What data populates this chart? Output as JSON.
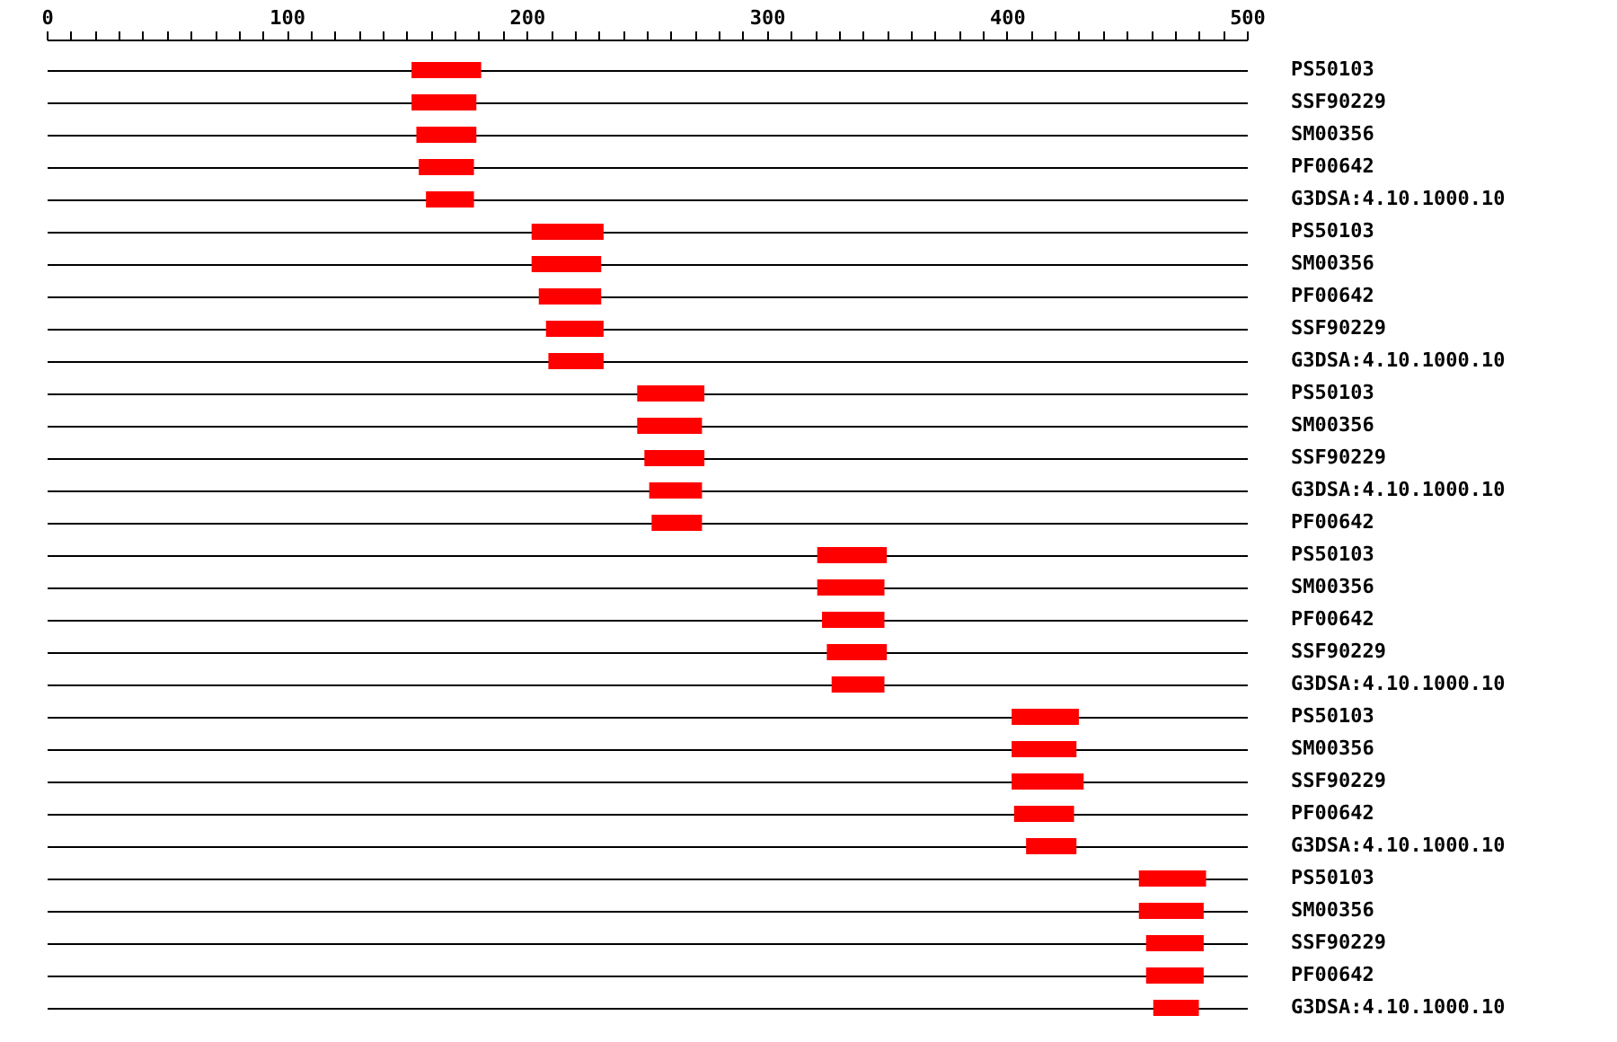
{
  "chart_data": {
    "type": "bar",
    "orientation": "horizontal",
    "color": "#ff0000",
    "grid": "y",
    "categories": [
      "PS50103",
      "SSF90229",
      "SM00356",
      "PF00642",
      "G3DSA:4.10.1000.10",
      "PS50103",
      "SM00356",
      "PF00642",
      "SSF90229",
      "G3DSA:4.10.1000.10",
      "PS50103",
      "SM00356",
      "SSF90229",
      "G3DSA:4.10.1000.10",
      "PF00642",
      "PS50103",
      "SM00356",
      "PF00642",
      "SSF90229",
      "G3DSA:4.10.1000.10",
      "PS50103",
      "SM00356",
      "SSF90229",
      "PF00642",
      "G3DSA:4.10.1000.10",
      "PS50103",
      "SM00356",
      "SSF90229",
      "PF00642",
      "G3DSA:4.10.1000.10"
    ],
    "base": [
      152,
      152,
      154,
      155,
      158,
      202,
      202,
      205,
      208,
      209,
      246,
      246,
      249,
      251,
      252,
      321,
      321,
      323,
      325,
      327,
      402,
      402,
      402,
      403,
      408,
      455,
      455,
      458,
      458,
      461
    ],
    "values": [
      29,
      27,
      25,
      23,
      20,
      30,
      29,
      26,
      24,
      23,
      28,
      27,
      25,
      22,
      21,
      29,
      28,
      26,
      25,
      22,
      28,
      27,
      30,
      25,
      21,
      28,
      27,
      24,
      24,
      19
    ],
    "xlim": [
      0,
      500
    ],
    "xticks": [
      0,
      {
        "value": 10,
        "label": null
      },
      {
        "value": 20,
        "label": null
      },
      {
        "value": 30,
        "label": null
      },
      {
        "value": 40,
        "label": null
      },
      {
        "value": 50,
        "label": null
      },
      {
        "value": 60,
        "label": null
      },
      {
        "value": 70,
        "label": null
      },
      {
        "value": 80,
        "label": null
      },
      {
        "value": 90,
        "label": null
      },
      100,
      {
        "value": 110,
        "label": null
      },
      {
        "value": 120,
        "label": null
      },
      {
        "value": 130,
        "label": null
      },
      {
        "value": 140,
        "label": null
      },
      {
        "value": 150,
        "label": null
      },
      {
        "value": 160,
        "label": null
      },
      {
        "value": 170,
        "label": null
      },
      {
        "value": 180,
        "label": null
      },
      {
        "value": 190,
        "label": null
      },
      200,
      {
        "value": 210,
        "label": null
      },
      {
        "value": 220,
        "label": null
      },
      {
        "value": 230,
        "label": null
      },
      {
        "value": 240,
        "label": null
      },
      {
        "value": 250,
        "label": null
      },
      {
        "value": 260,
        "label": null
      },
      {
        "value": 270,
        "label": null
      },
      {
        "value": 280,
        "label": null
      },
      {
        "value": 290,
        "label": null
      },
      300,
      {
        "value": 310,
        "label": null
      },
      {
        "value": 320,
        "label": null
      },
      {
        "value": 330,
        "label": null
      },
      {
        "value": 340,
        "label": null
      },
      {
        "value": 350,
        "label": null
      },
      {
        "value": 360,
        "label": null
      },
      {
        "value": 370,
        "label": null
      },
      {
        "value": 380,
        "label": null
      },
      {
        "value": 390,
        "label": null
      },
      400,
      {
        "value": 410,
        "label": null
      },
      {
        "value": 420,
        "label": null
      },
      {
        "value": 430,
        "label": null
      },
      {
        "value": 440,
        "label": null
      },
      {
        "value": 450,
        "label": null
      },
      {
        "value": 460,
        "label": null
      },
      {
        "value": 470,
        "label": null
      },
      {
        "value": 480,
        "label": null
      },
      {
        "value": 490,
        "label": null
      },
      500
    ]
  }
}
